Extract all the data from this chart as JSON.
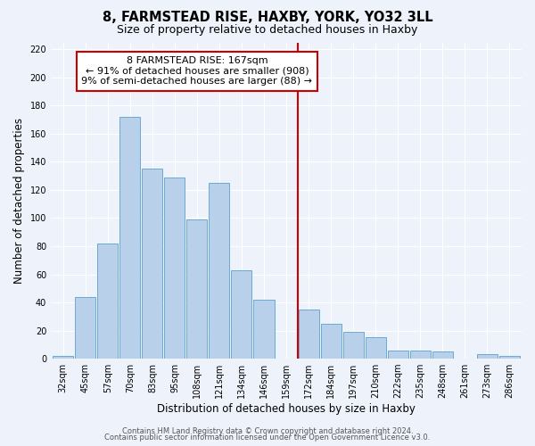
{
  "title": "8, FARMSTEAD RISE, HAXBY, YORK, YO32 3LL",
  "subtitle": "Size of property relative to detached houses in Haxby",
  "xlabel": "Distribution of detached houses by size in Haxby",
  "ylabel": "Number of detached properties",
  "categories": [
    "32sqm",
    "45sqm",
    "57sqm",
    "70sqm",
    "83sqm",
    "95sqm",
    "108sqm",
    "121sqm",
    "134sqm",
    "146sqm",
    "159sqm",
    "172sqm",
    "184sqm",
    "197sqm",
    "210sqm",
    "222sqm",
    "235sqm",
    "248sqm",
    "261sqm",
    "273sqm",
    "286sqm"
  ],
  "values": [
    2,
    44,
    82,
    172,
    135,
    129,
    99,
    125,
    63,
    42,
    0,
    35,
    25,
    19,
    15,
    6,
    6,
    5,
    0,
    3,
    2
  ],
  "bar_color": "#b8d0ea",
  "bar_edge_color": "#6aaad4",
  "vline_x": 10.5,
  "vline_color": "#cc0000",
  "annotation_title": "8 FARMSTEAD RISE: 167sqm",
  "annotation_line1": "← 91% of detached houses are smaller (908)",
  "annotation_line2": "9% of semi-detached houses are larger (88) →",
  "annotation_box_color": "#ffffff",
  "annotation_box_edge": "#cc0000",
  "ylim": [
    0,
    225
  ],
  "yticks": [
    0,
    20,
    40,
    60,
    80,
    100,
    120,
    140,
    160,
    180,
    200,
    220
  ],
  "footer1": "Contains HM Land Registry data © Crown copyright and database right 2024.",
  "footer2": "Contains public sector information licensed under the Open Government Licence v3.0.",
  "bg_color": "#eef2fb",
  "grid_color": "#ffffff",
  "title_fontsize": 10.5,
  "subtitle_fontsize": 9,
  "axis_label_fontsize": 8.5,
  "tick_fontsize": 7,
  "footer_fontsize": 6,
  "annotation_fontsize": 8,
  "annotation_title_fontsize": 8.5
}
